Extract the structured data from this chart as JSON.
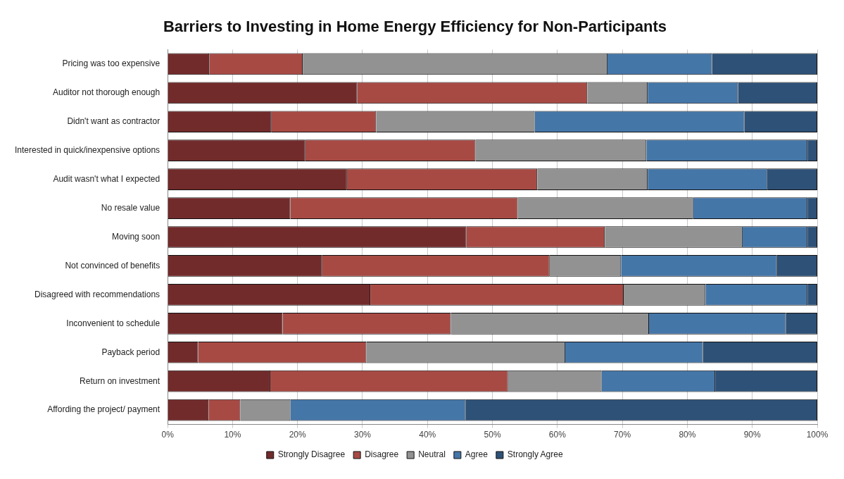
{
  "chart_data": {
    "type": "bar",
    "orientation": "horizontal",
    "stacked": true,
    "title": "Barriers to Investing in Home Energy Efficiency for Non-Participants",
    "categories": [
      "Pricing was too expensive",
      "Auditor not thorough enough",
      "Didn't want as contractor",
      "Interested in quick/inexpensive options",
      "Audit wasn't what I expected",
      "No resale value",
      "Moving soon",
      "Not convinced of benefits",
      "Disagreed with recommendations",
      "Inconvenient to schedule",
      "Payback period",
      "Return on investment",
      "Affording the project/ payment"
    ],
    "series": [
      {
        "name": "Strongly Disagree",
        "color": "#722b2b",
        "values": [
          6.4,
          29.2,
          16.0,
          21.2,
          27.6,
          18.9,
          46.0,
          23.8,
          31.2,
          17.7,
          4.7,
          15.8,
          6.3
        ]
      },
      {
        "name": "Disagree",
        "color": "#a84a44",
        "values": [
          14.4,
          35.4,
          16.1,
          26.2,
          29.3,
          35.0,
          21.3,
          35.0,
          39.0,
          25.9,
          25.9,
          36.6,
          4.9
        ]
      },
      {
        "name": "Neutral",
        "color": "#929292",
        "values": [
          46.9,
          9.3,
          24.4,
          26.3,
          17.0,
          27.0,
          21.2,
          11.0,
          12.6,
          30.5,
          30.6,
          14.4,
          7.7
        ]
      },
      {
        "name": "Agree",
        "color": "#4576a8",
        "values": [
          16.1,
          13.9,
          32.3,
          24.8,
          18.5,
          17.6,
          10.0,
          24.0,
          15.7,
          21.1,
          21.2,
          17.5,
          27.0
        ]
      },
      {
        "name": "Strongly Agree",
        "color": "#2e5177",
        "values": [
          16.2,
          12.2,
          11.2,
          1.5,
          7.6,
          1.5,
          1.5,
          6.2,
          1.5,
          4.8,
          17.6,
          15.7,
          54.1
        ]
      }
    ],
    "xlim": [
      0,
      100
    ],
    "xticks": [
      {
        "value": 0,
        "label": "0%"
      },
      {
        "value": 10,
        "label": "10%"
      },
      {
        "value": 20,
        "label": "20%"
      },
      {
        "value": 30,
        "label": "30%"
      },
      {
        "value": 40,
        "label": "40%"
      },
      {
        "value": 50,
        "label": "50%"
      },
      {
        "value": 60,
        "label": "60%"
      },
      {
        "value": 70,
        "label": "70%"
      },
      {
        "value": 80,
        "label": "80%"
      },
      {
        "value": 90,
        "label": "90%"
      },
      {
        "value": 100,
        "label": "100%"
      }
    ],
    "grid": "x",
    "legend": "bottom"
  }
}
